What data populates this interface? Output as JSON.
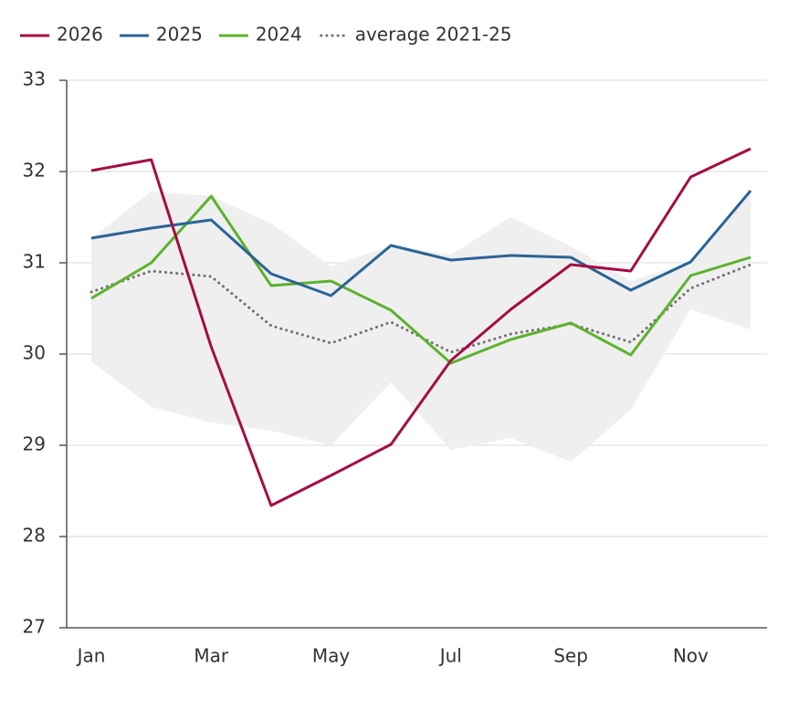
{
  "chart_data": {
    "type": "line",
    "categories": [
      "Jan",
      null,
      "Mar",
      null,
      "May",
      null,
      "Jul",
      null,
      "Sep",
      null,
      "Nov",
      null
    ],
    "series": [
      {
        "name": "2026",
        "color": "#a50d45",
        "values": [
          32.01,
          32.13,
          30.08,
          28.34,
          28.67,
          29.01,
          29.93,
          30.49,
          30.98,
          30.91,
          31.94,
          32.25
        ]
      },
      {
        "name": "2025",
        "color": "#2a6496",
        "values": [
          31.27,
          31.38,
          31.47,
          30.88,
          30.64,
          31.19,
          31.03,
          31.08,
          31.06,
          30.7,
          31.01,
          31.79
        ]
      },
      {
        "name": "2024",
        "color": "#5cb22d",
        "values": [
          30.61,
          31.0,
          31.73,
          30.75,
          30.8,
          30.48,
          29.9,
          30.16,
          30.34,
          29.99,
          30.86,
          31.06
        ]
      },
      {
        "name": "average 2021-25",
        "color": "#707070",
        "dash": "dotted",
        "values": [
          30.68,
          30.91,
          30.85,
          30.31,
          30.12,
          30.35,
          30.02,
          30.22,
          30.33,
          30.13,
          30.72,
          30.98
        ]
      }
    ],
    "band": {
      "color": "#efefef",
      "upper": [
        31.27,
        31.78,
        31.73,
        31.43,
        30.96,
        31.19,
        31.09,
        31.5,
        31.18,
        30.8,
        31.01,
        31.79
      ],
      "lower": [
        29.92,
        29.42,
        29.25,
        29.16,
        29.0,
        29.69,
        28.95,
        29.08,
        28.82,
        29.39,
        30.49,
        30.27
      ]
    },
    "ylim": [
      27,
      33
    ],
    "yticks": [
      27,
      28,
      29,
      30,
      31,
      32,
      33
    ],
    "grid": true,
    "legend": "top-left"
  }
}
